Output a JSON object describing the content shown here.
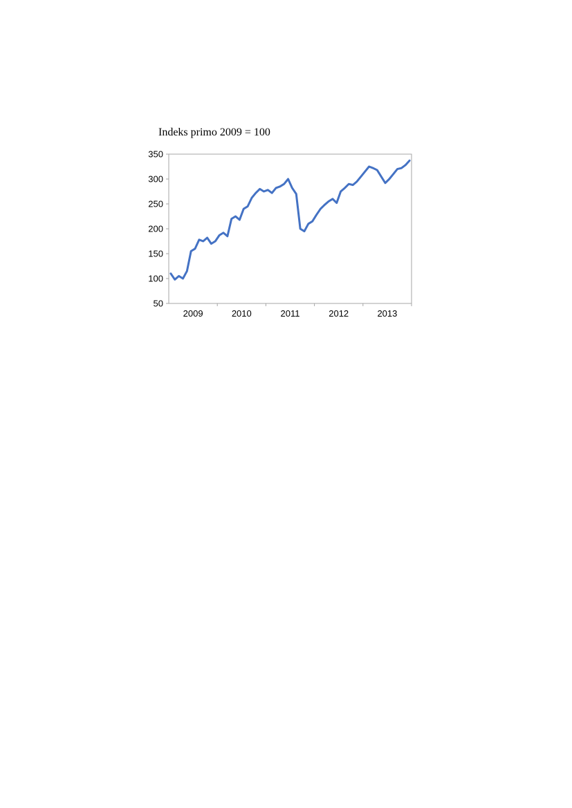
{
  "chart_data": {
    "type": "line",
    "title": "Indeks primo 2009 = 100",
    "xlabel": "",
    "ylabel": "",
    "ylim": [
      50,
      350
    ],
    "yticks": [
      50,
      100,
      150,
      200,
      250,
      300,
      350
    ],
    "xtick_labels": [
      "2009",
      "2010",
      "2011",
      "2012",
      "2013"
    ],
    "xlim": [
      "2009-01",
      "2013-12"
    ],
    "grid": false,
    "legend": "none",
    "series": [
      {
        "color": "#4472C4",
        "x": [
          "2009-01",
          "2009-02",
          "2009-03",
          "2009-04",
          "2009-05",
          "2009-06",
          "2009-07",
          "2009-08",
          "2009-09",
          "2009-10",
          "2009-11",
          "2009-12",
          "2010-01",
          "2010-02",
          "2010-03",
          "2010-04",
          "2010-05",
          "2010-06",
          "2010-07",
          "2010-08",
          "2010-09",
          "2010-10",
          "2010-11",
          "2010-12",
          "2011-01",
          "2011-02",
          "2011-03",
          "2011-04",
          "2011-05",
          "2011-06",
          "2011-07",
          "2011-08",
          "2011-09",
          "2011-10",
          "2011-11",
          "2011-12",
          "2012-01",
          "2012-02",
          "2012-03",
          "2012-04",
          "2012-05",
          "2012-06",
          "2012-07",
          "2012-08",
          "2012-09",
          "2012-10",
          "2012-11",
          "2012-12",
          "2013-01",
          "2013-02",
          "2013-03",
          "2013-04",
          "2013-05",
          "2013-06",
          "2013-07",
          "2013-08",
          "2013-09",
          "2013-10",
          "2013-11",
          "2013-12"
        ],
        "values": [
          110,
          98,
          105,
          100,
          115,
          155,
          160,
          178,
          175,
          182,
          170,
          175,
          187,
          192,
          185,
          220,
          225,
          218,
          240,
          245,
          262,
          272,
          280,
          275,
          278,
          272,
          282,
          285,
          290,
          300,
          282,
          270,
          200,
          195,
          210,
          215,
          228,
          240,
          248,
          255,
          260,
          252,
          275,
          282,
          290,
          288,
          295,
          305,
          315,
          325,
          322,
          318,
          305,
          292,
          300,
          310,
          320,
          322,
          328,
          337
        ]
      }
    ]
  }
}
